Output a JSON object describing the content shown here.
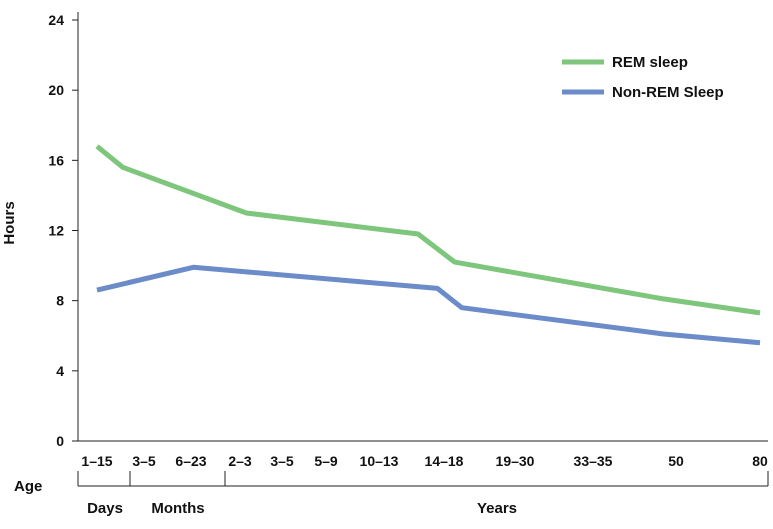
{
  "chart_data": {
    "type": "line",
    "title": "",
    "xlabel": "Age",
    "ylabel": "Hours",
    "ylim": [
      0,
      24
    ],
    "yticks": [
      0,
      4,
      8,
      12,
      16,
      20,
      24
    ],
    "grid": false,
    "legend_position": "top-right",
    "categories": [
      "1–15",
      "3–5",
      "6–23",
      "2–3",
      "3–5",
      "5–9",
      "10–13",
      "14–18",
      "19–30",
      "33–35",
      "50",
      "80"
    ],
    "groups": [
      {
        "label": "Days",
        "from": 0,
        "to": 0
      },
      {
        "label": "Months",
        "from": 1,
        "to": 2
      },
      {
        "label": "Years",
        "from": 3,
        "to": 11
      }
    ],
    "x": [
      0,
      1,
      2,
      3,
      4,
      5,
      6,
      7,
      8,
      9,
      10,
      11
    ],
    "series": [
      {
        "name": "REM sleep",
        "color": "#7dc67c",
        "x": [
          0,
          0.55,
          3.15,
          6.6,
          7.15,
          9.85,
          11.45,
          12
        ],
        "values": [
          16.8,
          15.6,
          13.0,
          11.8,
          10.2,
          8.1,
          7.3,
          7.3
        ]
      },
      {
        "name": "Non-REM Sleep",
        "color": "#6b8bc9",
        "x": [
          0,
          2.05,
          6.9,
          7.25,
          9.85,
          11.45,
          12
        ],
        "values": [
          8.6,
          9.9,
          8.7,
          7.6,
          6.1,
          5.6,
          5.6
        ]
      }
    ]
  }
}
